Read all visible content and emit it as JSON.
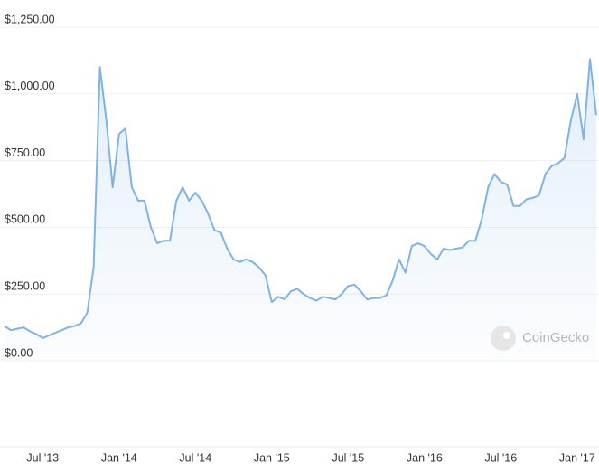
{
  "chart_data": {
    "type": "line",
    "categories": [
      null,
      null,
      null,
      null,
      null,
      null,
      "Jul '13",
      null,
      null,
      null,
      null,
      null,
      null,
      null,
      null,
      null,
      null,
      null,
      "Jan '14",
      null,
      null,
      null,
      null,
      null,
      null,
      null,
      null,
      null,
      null,
      null,
      "Jul '14",
      null,
      null,
      null,
      null,
      null,
      null,
      null,
      null,
      null,
      null,
      null,
      "Jan '15",
      null,
      null,
      null,
      null,
      null,
      null,
      null,
      null,
      null,
      null,
      null,
      "Jul '15",
      null,
      null,
      null,
      null,
      null,
      null,
      null,
      null,
      null,
      null,
      null,
      "Jan '16",
      null,
      null,
      null,
      null,
      null,
      null,
      null,
      null,
      null,
      null,
      null,
      "Jul '16",
      null,
      null,
      null,
      null,
      null,
      null,
      null,
      null,
      null,
      null,
      null,
      "Jan '17",
      null,
      null,
      null
    ],
    "series": [
      {
        "color": "#7fb3e6",
        "values": [
          130,
          115,
          120,
          125,
          110,
          100,
          85,
          95,
          105,
          115,
          125,
          130,
          140,
          180,
          350,
          1100,
          900,
          650,
          850,
          870,
          650,
          600,
          600,
          500,
          440,
          450,
          450,
          600,
          650,
          600,
          630,
          600,
          550,
          490,
          480,
          420,
          380,
          370,
          380,
          370,
          350,
          320,
          220,
          240,
          230,
          260,
          270,
          250,
          235,
          225,
          240,
          235,
          230,
          250,
          280,
          285,
          260,
          230,
          235,
          235,
          245,
          300,
          380,
          330,
          430,
          440,
          430,
          400,
          380,
          420,
          415,
          420,
          425,
          450,
          450,
          530,
          650,
          700,
          670,
          660,
          580,
          580,
          605,
          610,
          620,
          700,
          730,
          740,
          760,
          900,
          1000,
          830,
          1130,
          920
        ]
      }
    ],
    "ylim": [
      0,
      1250
    ],
    "yticks": [
      {
        "value": 0,
        "label": "$0.00"
      },
      {
        "value": 250,
        "label": "$250.00"
      },
      {
        "value": 500,
        "label": "$500.00"
      },
      {
        "value": 750,
        "label": "$750.00"
      },
      {
        "value": 1000,
        "label": "$1,000.00"
      },
      {
        "value": 1250,
        "label": "$1,250.00"
      }
    ],
    "grid": true,
    "watermark": "CoinGecko"
  }
}
